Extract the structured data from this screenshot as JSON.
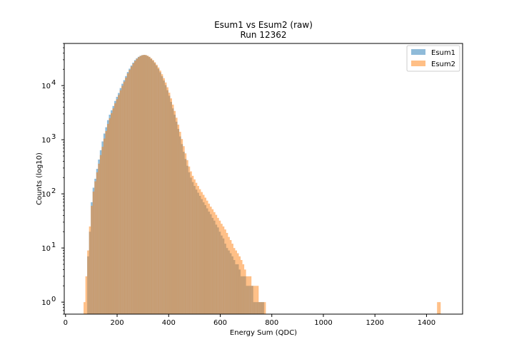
{
  "chart_data": {
    "type": "bar",
    "subtype": "overlaid-histogram",
    "title": "Esum1 vs Esum2 (raw)",
    "subtitle": "Run 12362",
    "xlabel": "Energy Sum (QDC)",
    "ylabel": "Counts (log10)",
    "xlim": [
      -5,
      1540
    ],
    "ylim": [
      0.6,
      60000
    ],
    "yscale": "log",
    "xticks": [
      0,
      200,
      400,
      600,
      800,
      1000,
      1200,
      1400
    ],
    "xtick_labels": [
      "0",
      "200",
      "400",
      "600",
      "800",
      "1000",
      "1200",
      "1400"
    ],
    "yticks": [
      1,
      10,
      100,
      1000,
      10000
    ],
    "ytick_labels": [
      "10",
      "10",
      "10",
      "10",
      "10"
    ],
    "ytick_exponents": [
      "0",
      "1",
      "2",
      "3",
      "4"
    ],
    "legend_position": "top-right",
    "bin_width": 7,
    "grid": false,
    "series": [
      {
        "name": "Esum1",
        "color": "#1f77b4",
        "alpha": 0.5,
        "bins": [
          [
            84,
            7
          ],
          [
            91,
            20
          ],
          [
            98,
            70
          ],
          [
            105,
            130
          ],
          [
            112,
            190
          ],
          [
            119,
            290
          ],
          [
            126,
            430
          ],
          [
            133,
            640
          ],
          [
            140,
            930
          ],
          [
            147,
            1300
          ],
          [
            154,
            1700
          ],
          [
            161,
            2300
          ],
          [
            168,
            2900
          ],
          [
            175,
            3500
          ],
          [
            182,
            4200
          ],
          [
            189,
            5200
          ],
          [
            196,
            6200
          ],
          [
            203,
            7300
          ],
          [
            210,
            9000
          ],
          [
            217,
            10800
          ],
          [
            224,
            12600
          ],
          [
            231,
            15000
          ],
          [
            238,
            17800
          ],
          [
            245,
            20500
          ],
          [
            252,
            23500
          ],
          [
            259,
            26500
          ],
          [
            266,
            29500
          ],
          [
            273,
            32000
          ],
          [
            280,
            34000
          ],
          [
            287,
            35500
          ],
          [
            294,
            36500
          ],
          [
            301,
            36800
          ],
          [
            308,
            36500
          ],
          [
            315,
            35200
          ],
          [
            322,
            33600
          ],
          [
            329,
            31200
          ],
          [
            336,
            28800
          ],
          [
            343,
            26000
          ],
          [
            350,
            23200
          ],
          [
            357,
            20400
          ],
          [
            364,
            17600
          ],
          [
            371,
            14900
          ],
          [
            378,
            12400
          ],
          [
            385,
            10200
          ],
          [
            392,
            8200
          ],
          [
            399,
            6500
          ],
          [
            406,
            5000
          ],
          [
            413,
            3800
          ],
          [
            420,
            2900
          ],
          [
            427,
            2150
          ],
          [
            434,
            1580
          ],
          [
            441,
            1150
          ],
          [
            448,
            830
          ],
          [
            455,
            600
          ],
          [
            462,
            440
          ],
          [
            469,
            330
          ],
          [
            476,
            250
          ],
          [
            483,
            200
          ],
          [
            490,
            165
          ],
          [
            497,
            140
          ],
          [
            504,
            120
          ],
          [
            511,
            105
          ],
          [
            518,
            92
          ],
          [
            525,
            80
          ],
          [
            532,
            70
          ],
          [
            539,
            62
          ],
          [
            546,
            54
          ],
          [
            553,
            47
          ],
          [
            560,
            42
          ],
          [
            567,
            36
          ],
          [
            574,
            32
          ],
          [
            581,
            27
          ],
          [
            588,
            24
          ],
          [
            595,
            20
          ],
          [
            602,
            17
          ],
          [
            609,
            15
          ],
          [
            616,
            12
          ],
          [
            623,
            10
          ],
          [
            630,
            9
          ],
          [
            637,
            8
          ],
          [
            644,
            7
          ],
          [
            651,
            6
          ],
          [
            658,
            5
          ],
          [
            665,
            5
          ],
          [
            672,
            4
          ],
          [
            679,
            3
          ],
          [
            686,
            3
          ],
          [
            693,
            3
          ],
          [
            700,
            2
          ],
          [
            707,
            2
          ],
          [
            714,
            2
          ],
          [
            721,
            2
          ],
          [
            728,
            1
          ],
          [
            735,
            1
          ],
          [
            742,
            1
          ],
          [
            749,
            1
          ],
          [
            756,
            1
          ],
          [
            763,
            1
          ]
        ]
      },
      {
        "name": "Esum2",
        "color": "#ff7f0e",
        "alpha": 0.5,
        "bins": [
          [
            70,
            1
          ],
          [
            77,
            3
          ],
          [
            84,
            9
          ],
          [
            91,
            25
          ],
          [
            98,
            60
          ],
          [
            105,
            110
          ],
          [
            112,
            170
          ],
          [
            119,
            250
          ],
          [
            126,
            360
          ],
          [
            133,
            520
          ],
          [
            140,
            740
          ],
          [
            147,
            1050
          ],
          [
            154,
            1450
          ],
          [
            161,
            1950
          ],
          [
            168,
            2500
          ],
          [
            175,
            3100
          ],
          [
            182,
            3800
          ],
          [
            189,
            4700
          ],
          [
            196,
            5600
          ],
          [
            203,
            6700
          ],
          [
            210,
            8200
          ],
          [
            217,
            9900
          ],
          [
            224,
            11800
          ],
          [
            231,
            14000
          ],
          [
            238,
            16800
          ],
          [
            245,
            19500
          ],
          [
            252,
            22500
          ],
          [
            259,
            25500
          ],
          [
            266,
            28500
          ],
          [
            273,
            31200
          ],
          [
            280,
            33500
          ],
          [
            287,
            35200
          ],
          [
            294,
            36400
          ],
          [
            301,
            36900
          ],
          [
            308,
            36700
          ],
          [
            315,
            35600
          ],
          [
            322,
            34100
          ],
          [
            329,
            31900
          ],
          [
            336,
            29600
          ],
          [
            343,
            27000
          ],
          [
            350,
            24300
          ],
          [
            357,
            21600
          ],
          [
            364,
            18900
          ],
          [
            371,
            16200
          ],
          [
            378,
            13700
          ],
          [
            385,
            11400
          ],
          [
            392,
            9300
          ],
          [
            399,
            7400
          ],
          [
            406,
            5800
          ],
          [
            413,
            4450
          ],
          [
            420,
            3400
          ],
          [
            427,
            2550
          ],
          [
            434,
            1900
          ],
          [
            441,
            1400
          ],
          [
            448,
            1030
          ],
          [
            455,
            760
          ],
          [
            462,
            560
          ],
          [
            469,
            420
          ],
          [
            476,
            320
          ],
          [
            483,
            260
          ],
          [
            490,
            215
          ],
          [
            497,
            185
          ],
          [
            504,
            160
          ],
          [
            511,
            140
          ],
          [
            518,
            122
          ],
          [
            525,
            108
          ],
          [
            532,
            96
          ],
          [
            539,
            85
          ],
          [
            546,
            75
          ],
          [
            553,
            66
          ],
          [
            560,
            58
          ],
          [
            567,
            52
          ],
          [
            574,
            46
          ],
          [
            581,
            41
          ],
          [
            588,
            36
          ],
          [
            595,
            32
          ],
          [
            602,
            28
          ],
          [
            609,
            25
          ],
          [
            616,
            22
          ],
          [
            623,
            19
          ],
          [
            630,
            16
          ],
          [
            637,
            14
          ],
          [
            644,
            12
          ],
          [
            651,
            10
          ],
          [
            658,
            9
          ],
          [
            665,
            8
          ],
          [
            672,
            7
          ],
          [
            679,
            6
          ],
          [
            686,
            5
          ],
          [
            693,
            4
          ],
          [
            700,
            3
          ],
          [
            707,
            3
          ],
          [
            714,
            3
          ],
          [
            721,
            2
          ],
          [
            728,
            2
          ],
          [
            735,
            2
          ],
          [
            742,
            2
          ],
          [
            749,
            1
          ],
          [
            756,
            1
          ],
          [
            763,
            1
          ],
          [
            770,
            1
          ],
          [
            1441,
            1
          ],
          [
            1448,
            1
          ]
        ]
      }
    ]
  }
}
